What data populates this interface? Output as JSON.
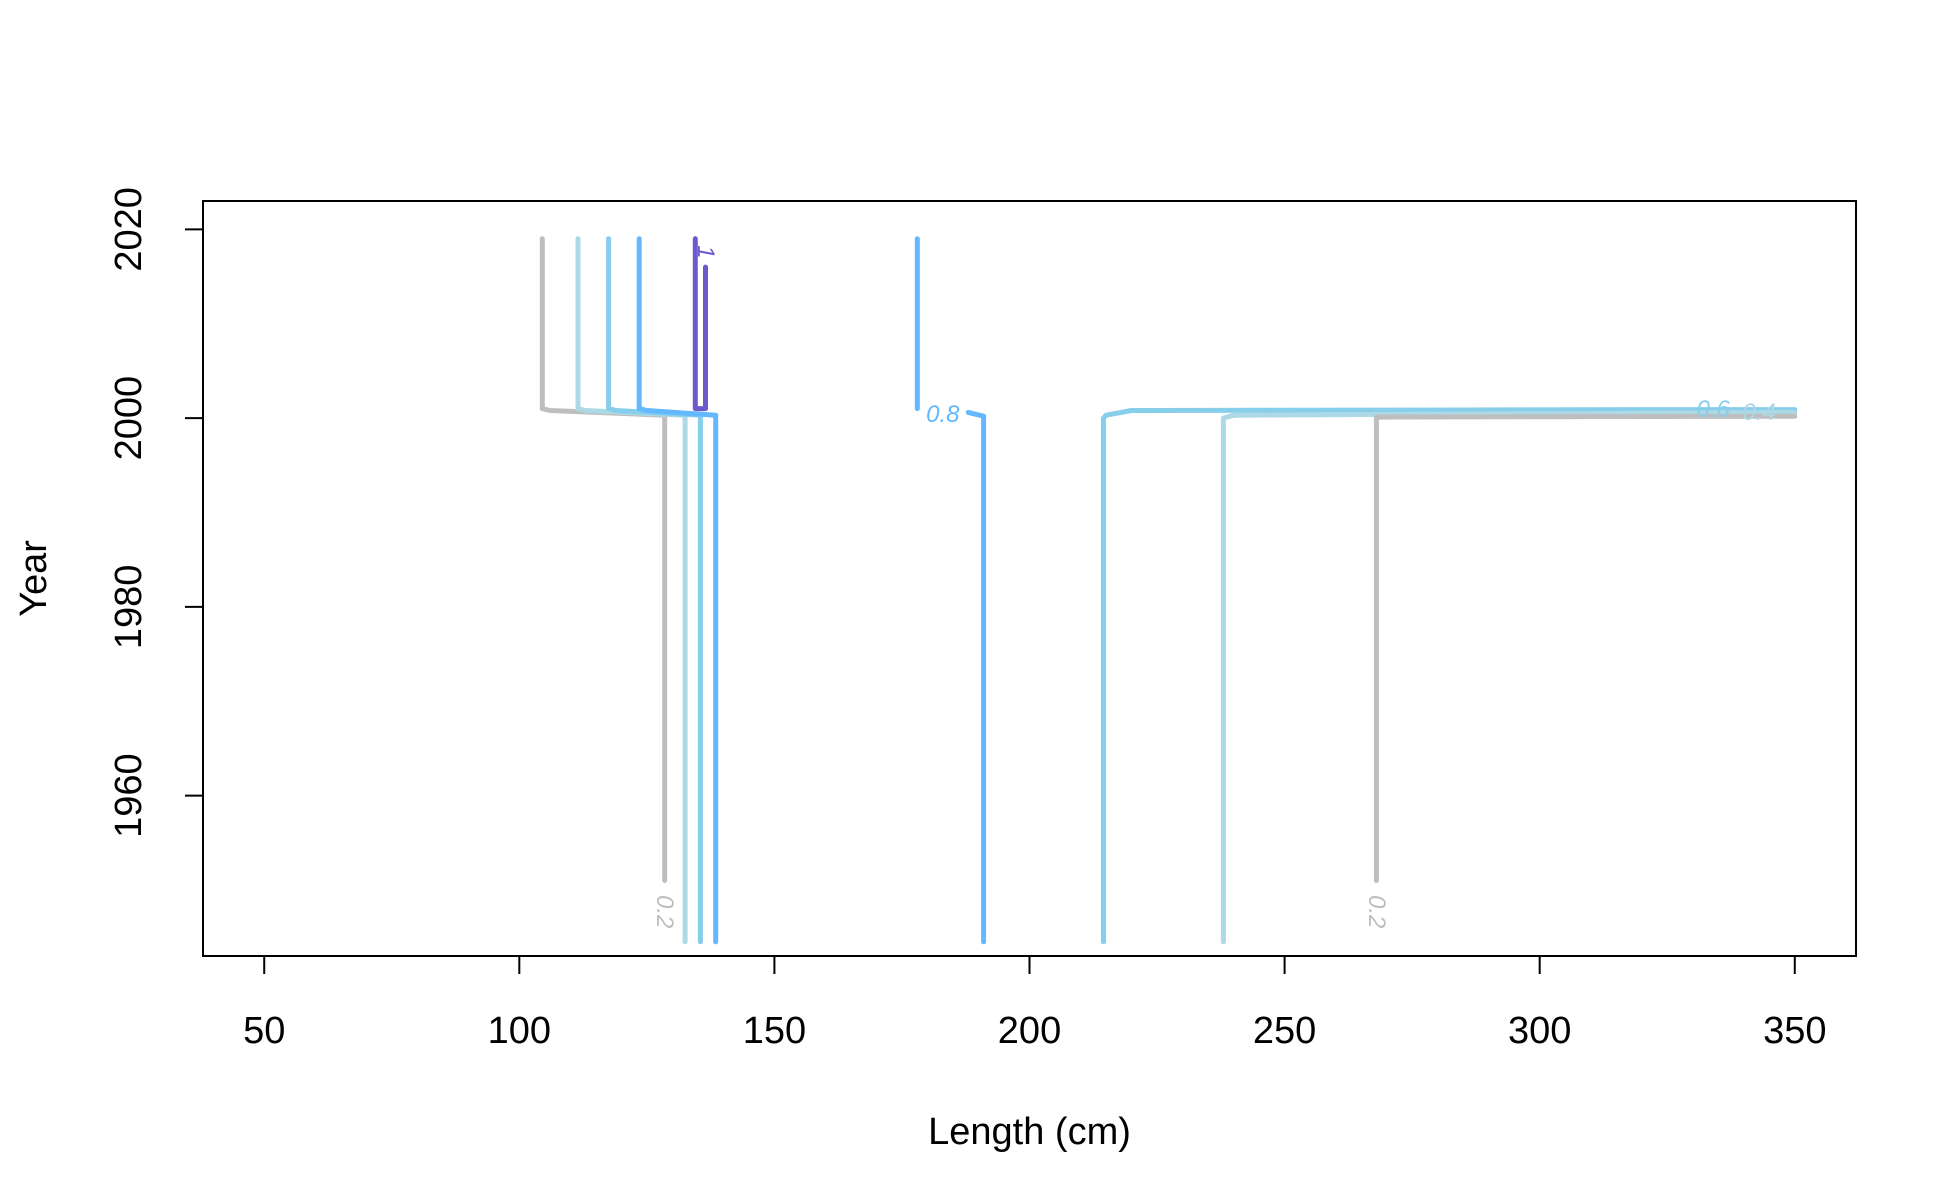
{
  "chart_data": {
    "type": "line",
    "title": "",
    "xlabel": "Length (cm)",
    "ylabel": "Year",
    "xlim": [
      38,
      362
    ],
    "ylim": [
      1943,
      2023
    ],
    "x_ticks": [
      50,
      100,
      150,
      200,
      250,
      300,
      350
    ],
    "y_ticks": [
      1960,
      1980,
      2000,
      2020
    ],
    "grid": false,
    "legend": "none",
    "series": [
      {
        "color": "#BEBEBE",
        "points": [
          [
            104.5,
            2019
          ],
          [
            104.5,
            2001
          ],
          [
            106,
            2000.8
          ],
          [
            128.5,
            2000.3
          ],
          [
            128.5,
            1951
          ]
        ]
      },
      {
        "color": "#ADD8E6",
        "points": [
          [
            111.5,
            2019
          ],
          [
            111.5,
            2001
          ],
          [
            113,
            2000.8
          ],
          [
            132.5,
            2000.3
          ],
          [
            132.5,
            1944.5
          ]
        ]
      },
      {
        "color": "#87CEEB",
        "points": [
          [
            117.5,
            2019
          ],
          [
            117.5,
            2001
          ],
          [
            119,
            2000.8
          ],
          [
            135.5,
            2000.3
          ],
          [
            135.5,
            1944.5
          ]
        ]
      },
      {
        "color": "#63B8FF",
        "points": [
          [
            123.5,
            2019
          ],
          [
            123.5,
            2001
          ],
          [
            125,
            2000.8
          ],
          [
            138.5,
            2000.3
          ],
          [
            138.5,
            1944.5
          ]
        ]
      },
      {
        "color": "#6A5ACD",
        "points": [
          [
            134.5,
            2019
          ],
          [
            134.5,
            2001
          ],
          [
            136.5,
            2001
          ],
          [
            136.5,
            2016
          ]
        ]
      },
      {
        "color": "#63B8FF",
        "points": [
          [
            178,
            2019
          ],
          [
            178,
            2001
          ]
        ]
      },
      {
        "color": "#63B8FF",
        "points": [
          [
            188,
            2000.6
          ],
          [
            191,
            2000.2
          ],
          [
            191,
            1944.5
          ]
        ]
      },
      {
        "color": "#87CEEB",
        "points": [
          [
            350,
            2000.9
          ],
          [
            330,
            2000.9
          ],
          [
            220,
            2000.8
          ],
          [
            215,
            2000.3
          ],
          [
            214.5,
            2000
          ],
          [
            214.5,
            1944.5
          ]
        ]
      },
      {
        "color": "#ADD8E6",
        "points": [
          [
            350,
            2000.6
          ],
          [
            240,
            2000.3
          ],
          [
            238,
            2000
          ],
          [
            238,
            1944.5
          ]
        ]
      },
      {
        "color": "#BEBEBE",
        "points": [
          [
            350,
            2000.2
          ],
          [
            268,
            2000.1
          ],
          [
            268,
            1951
          ]
        ]
      }
    ],
    "contour_labels": [
      {
        "text": "0.2",
        "x": 128.5,
        "y": 1947.7,
        "rotate": 90,
        "color": "#BEBEBE"
      },
      {
        "text": "1",
        "x": 136.5,
        "y": 2017.6,
        "rotate": 90,
        "color": "#6A5ACD"
      },
      {
        "text": "0.8",
        "x": 183,
        "y": 2000.4,
        "rotate": 0,
        "color": "#63B8FF"
      },
      {
        "text": "0.6",
        "x": 334,
        "y": 2000.9,
        "rotate": 0,
        "color": "#87CEEB"
      },
      {
        "text": "0.4",
        "x": 343,
        "y": 2000.6,
        "rotate": 0,
        "color": "#ADD8E6"
      },
      {
        "text": "0.2",
        "x": 268,
        "y": 1947.7,
        "rotate": 90,
        "color": "#BEBEBE"
      }
    ]
  }
}
